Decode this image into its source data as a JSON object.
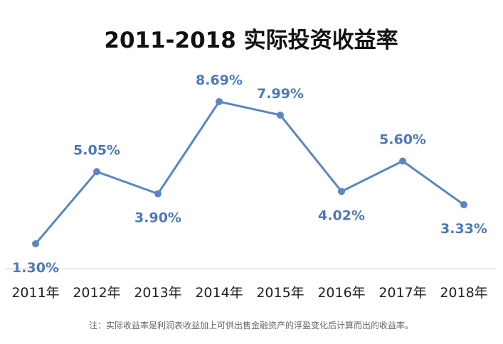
{
  "chart_data": {
    "type": "line",
    "title": "2011-2018 实际投资收益率",
    "categories": [
      "2011年",
      "2012年",
      "2013年",
      "2014年",
      "2015年",
      "2016年",
      "2017年",
      "2018年"
    ],
    "series": [
      {
        "values": [
          1.3,
          5.05,
          3.9,
          8.69,
          7.99,
          4.02,
          5.6,
          3.33
        ],
        "data_labels": [
          "1.30%",
          "5.05%",
          "3.90%",
          "8.69%",
          "7.99%",
          "4.02%",
          "5.60%",
          "3.33%"
        ]
      }
    ],
    "ylim": [
      0,
      10
    ],
    "grid": false,
    "line_color": "#5b86c0",
    "label_color": "#4e7ab4",
    "footnote": "注：实际收益率是利润表收益加上可供出售金融资产的浮盈变化后计算而出的收益率。"
  }
}
